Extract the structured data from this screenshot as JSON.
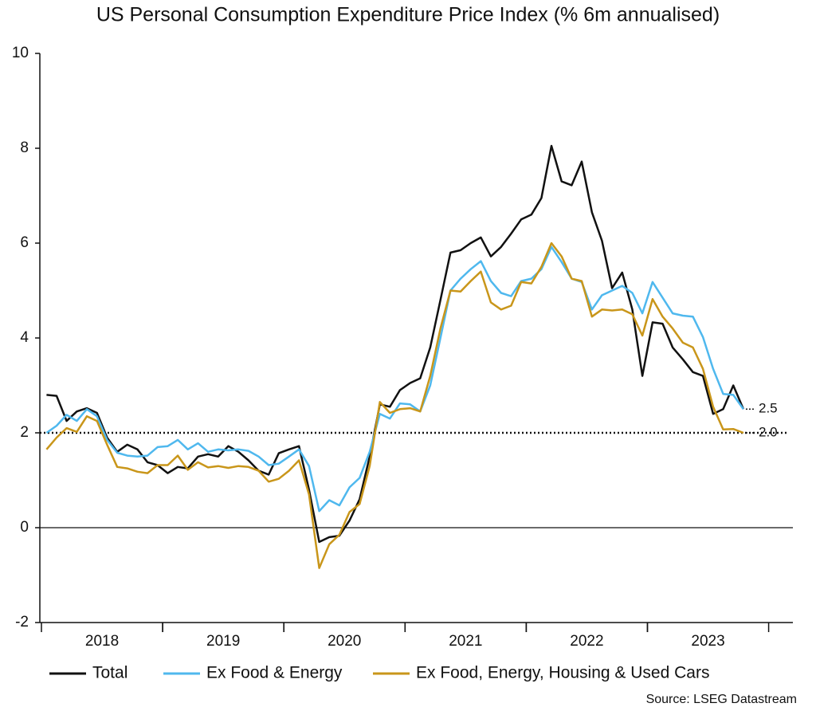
{
  "chart_data": {
    "type": "line",
    "title": "US Personal Consumption Expenditure Price Index (% 6m annualised)",
    "source": "Source: LSEG Datastream",
    "x": [
      2018.042,
      2018.125,
      2018.208,
      2018.292,
      2018.375,
      2018.458,
      2018.542,
      2018.625,
      2018.708,
      2018.792,
      2018.875,
      2018.958,
      2019.042,
      2019.125,
      2019.208,
      2019.292,
      2019.375,
      2019.458,
      2019.542,
      2019.625,
      2019.708,
      2019.792,
      2019.875,
      2019.958,
      2020.042,
      2020.125,
      2020.208,
      2020.292,
      2020.375,
      2020.458,
      2020.542,
      2020.625,
      2020.708,
      2020.792,
      2020.875,
      2020.958,
      2021.042,
      2021.125,
      2021.208,
      2021.292,
      2021.375,
      2021.458,
      2021.542,
      2021.625,
      2021.708,
      2021.792,
      2021.875,
      2021.958,
      2022.042,
      2022.125,
      2022.208,
      2022.292,
      2022.375,
      2022.458,
      2022.542,
      2022.625,
      2022.708,
      2022.792,
      2022.875,
      2022.958,
      2023.042,
      2023.125,
      2023.208,
      2023.292,
      2023.375,
      2023.458,
      2023.542,
      2023.625,
      2023.708,
      2023.792
    ],
    "series": [
      {
        "name": "Total",
        "color": "#111111",
        "values": [
          2.8,
          2.78,
          2.25,
          2.45,
          2.52,
          2.42,
          1.9,
          1.6,
          1.75,
          1.65,
          1.38,
          1.32,
          1.15,
          1.28,
          1.25,
          1.5,
          1.55,
          1.5,
          1.72,
          1.6,
          1.42,
          1.2,
          1.12,
          1.57,
          1.65,
          1.72,
          0.8,
          -0.3,
          -0.2,
          -0.17,
          0.15,
          0.6,
          1.5,
          2.6,
          2.55,
          2.9,
          3.05,
          3.15,
          3.8,
          4.8,
          5.8,
          5.85,
          6.0,
          6.12,
          5.72,
          5.92,
          6.2,
          6.5,
          6.6,
          6.95,
          8.05,
          7.3,
          7.22,
          7.72,
          6.65,
          6.05,
          5.05,
          5.38,
          4.6,
          3.2,
          4.33,
          4.3,
          3.8,
          3.55,
          3.28,
          3.2,
          2.4,
          2.5,
          3.0,
          2.5
        ]
      },
      {
        "name": "Ex Food & Energy",
        "color": "#4fb8ee",
        "values": [
          2.0,
          2.15,
          2.38,
          2.25,
          2.5,
          2.35,
          1.85,
          1.58,
          1.52,
          1.5,
          1.52,
          1.7,
          1.72,
          1.85,
          1.65,
          1.78,
          1.6,
          1.65,
          1.63,
          1.65,
          1.62,
          1.5,
          1.32,
          1.35,
          1.5,
          1.65,
          1.3,
          0.35,
          0.58,
          0.47,
          0.85,
          1.05,
          1.6,
          2.4,
          2.3,
          2.62,
          2.6,
          2.45,
          3.0,
          4.0,
          5.0,
          5.25,
          5.45,
          5.62,
          5.2,
          4.95,
          4.88,
          5.2,
          5.25,
          5.45,
          5.92,
          5.6,
          5.25,
          5.18,
          4.6,
          4.9,
          5.0,
          5.1,
          4.95,
          4.52,
          5.18,
          4.85,
          4.52,
          4.47,
          4.45,
          4.02,
          3.35,
          2.82,
          2.8,
          2.5
        ]
      },
      {
        "name": "Ex Food, Energy, Housing & Used Cars",
        "color": "#c9961a",
        "values": [
          1.65,
          1.9,
          2.1,
          2.02,
          2.35,
          2.25,
          1.75,
          1.28,
          1.25,
          1.18,
          1.15,
          1.32,
          1.32,
          1.52,
          1.22,
          1.38,
          1.27,
          1.3,
          1.26,
          1.3,
          1.28,
          1.2,
          0.97,
          1.03,
          1.2,
          1.42,
          0.7,
          -0.85,
          -0.35,
          -0.15,
          0.33,
          0.5,
          1.3,
          2.65,
          2.42,
          2.5,
          2.52,
          2.45,
          3.2,
          4.2,
          5.0,
          4.98,
          5.2,
          5.4,
          4.75,
          4.6,
          4.68,
          5.18,
          5.15,
          5.5,
          6.0,
          5.72,
          5.25,
          5.2,
          4.45,
          4.6,
          4.58,
          4.6,
          4.5,
          4.05,
          4.82,
          4.45,
          4.2,
          3.9,
          3.8,
          3.35,
          2.55,
          2.07,
          2.08,
          2.0
        ]
      }
    ],
    "xlim": [
      2018,
      2024.2
    ],
    "xticks": [
      {
        "value": 2018.5,
        "label": "2018"
      },
      {
        "value": 2019.5,
        "label": "2019"
      },
      {
        "value": 2020.5,
        "label": "2020"
      },
      {
        "value": 2021.5,
        "label": "2021"
      },
      {
        "value": 2022.5,
        "label": "2022"
      },
      {
        "value": 2023.5,
        "label": "2023"
      }
    ],
    "ylim": [
      -2,
      10
    ],
    "yticks": [
      -2,
      0,
      2,
      4,
      6,
      8,
      10
    ],
    "reference_line": 2,
    "annotations": [
      {
        "value": 2.5,
        "label": "2.5"
      },
      {
        "value": 2.0,
        "label": "2.0"
      }
    ],
    "legend": "bottom"
  }
}
